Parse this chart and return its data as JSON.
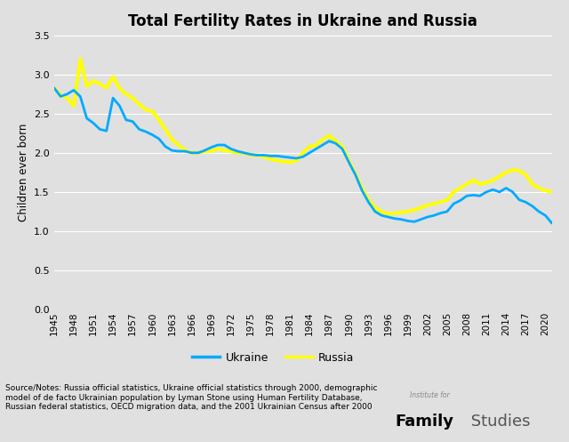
{
  "title": "Total Fertility Rates in Ukraine and Russia",
  "ylabel": "Children ever born",
  "background_color": "#e0e0e0",
  "plot_bg_color": "#e0e0e0",
  "ukraine_color": "#00aaff",
  "russia_color": "#ffff00",
  "ukraine_linewidth": 2.0,
  "russia_linewidth": 2.8,
  "ylim": [
    0,
    3.5
  ],
  "yticks": [
    0,
    0.5,
    1,
    1.5,
    2,
    2.5,
    3,
    3.5
  ],
  "years": [
    1945,
    1946,
    1947,
    1948,
    1949,
    1950,
    1951,
    1952,
    1953,
    1954,
    1955,
    1956,
    1957,
    1958,
    1959,
    1960,
    1961,
    1962,
    1963,
    1964,
    1965,
    1966,
    1967,
    1968,
    1969,
    1970,
    1971,
    1972,
    1973,
    1974,
    1975,
    1976,
    1977,
    1978,
    1979,
    1980,
    1981,
    1982,
    1983,
    1984,
    1985,
    1986,
    1987,
    1988,
    1989,
    1990,
    1991,
    1992,
    1993,
    1994,
    1995,
    1996,
    1997,
    1998,
    1999,
    2000,
    2001,
    2002,
    2003,
    2004,
    2005,
    2006,
    2007,
    2008,
    2009,
    2010,
    2011,
    2012,
    2013,
    2014,
    2015,
    2016,
    2017,
    2018,
    2019,
    2020,
    2021
  ],
  "ukraine": [
    2.83,
    2.72,
    2.75,
    2.8,
    2.72,
    2.44,
    2.38,
    2.3,
    2.28,
    2.7,
    2.6,
    2.42,
    2.4,
    2.3,
    2.27,
    2.23,
    2.18,
    2.08,
    2.03,
    2.02,
    2.02,
    2.0,
    2.0,
    2.03,
    2.07,
    2.1,
    2.1,
    2.05,
    2.02,
    2.0,
    1.98,
    1.97,
    1.97,
    1.96,
    1.96,
    1.95,
    1.94,
    1.93,
    1.95,
    2.0,
    2.05,
    2.1,
    2.15,
    2.12,
    2.05,
    1.88,
    1.72,
    1.52,
    1.37,
    1.25,
    1.2,
    1.18,
    1.16,
    1.15,
    1.13,
    1.12,
    1.15,
    1.18,
    1.2,
    1.23,
    1.25,
    1.35,
    1.39,
    1.45,
    1.46,
    1.45,
    1.5,
    1.53,
    1.5,
    1.55,
    1.5,
    1.4,
    1.37,
    1.32,
    1.25,
    1.2,
    1.1
  ],
  "russia": [
    2.83,
    2.74,
    2.7,
    2.6,
    3.2,
    2.85,
    2.92,
    2.88,
    2.83,
    2.97,
    2.82,
    2.75,
    2.7,
    2.62,
    2.55,
    2.53,
    2.42,
    2.3,
    2.17,
    2.1,
    2.03,
    2.0,
    2.0,
    2.02,
    2.02,
    2.05,
    2.03,
    2.02,
    2.0,
    2.0,
    1.97,
    1.97,
    1.95,
    1.92,
    1.9,
    1.89,
    1.88,
    1.9,
    2.0,
    2.08,
    2.1,
    2.17,
    2.22,
    2.15,
    2.08,
    1.9,
    1.73,
    1.55,
    1.4,
    1.3,
    1.25,
    1.22,
    1.23,
    1.24,
    1.25,
    1.27,
    1.3,
    1.33,
    1.35,
    1.37,
    1.4,
    1.5,
    1.55,
    1.6,
    1.65,
    1.6,
    1.62,
    1.65,
    1.7,
    1.75,
    1.78,
    1.77,
    1.72,
    1.6,
    1.55,
    1.52,
    1.5
  ],
  "xtick_start": 1945,
  "xtick_end": 2021,
  "xtick_step": 3,
  "source_text": "Source/Notes: Russia official statistics, Ukraine official statistics through 2000, demographic\nmodel of de facto Ukrainian population by Lyman Stone using Human Fertility Database,\nRussian federal statistics, OECD migration data, and the 2001 Ukrainian Census after 2000",
  "legend_ukraine": "Ukraine",
  "legend_russia": "Russia"
}
